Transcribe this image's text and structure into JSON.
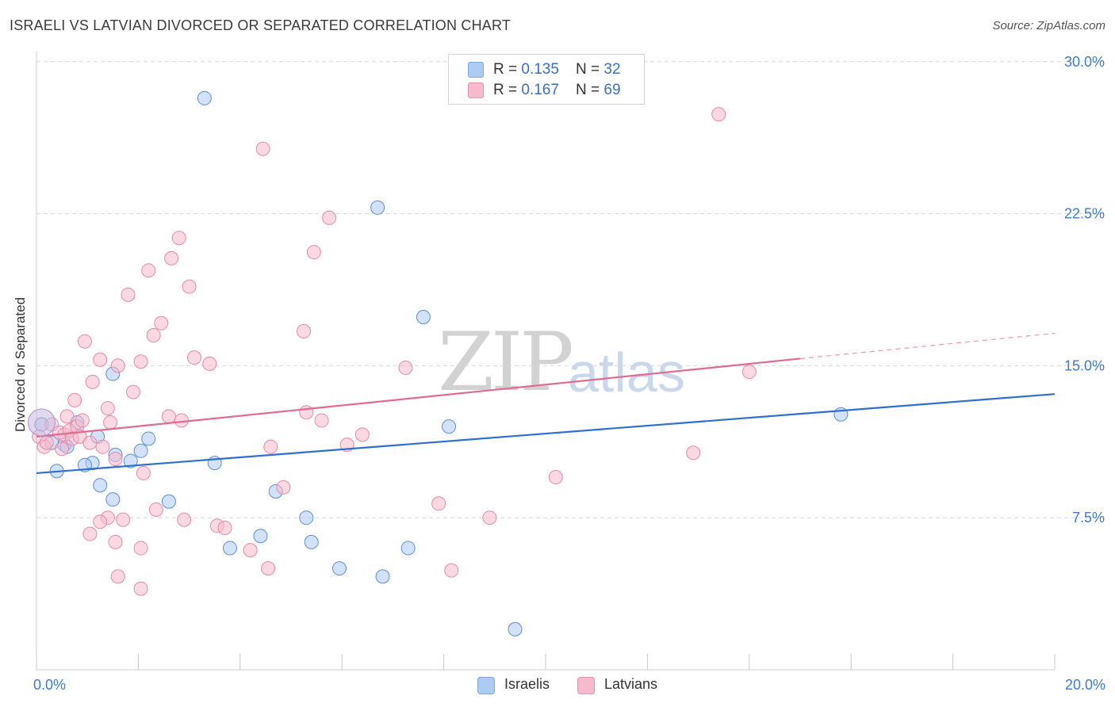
{
  "title": "ISRAELI VS LATVIAN DIVORCED OR SEPARATED CORRELATION CHART",
  "source": "Source: ZipAtlas.com",
  "watermark": {
    "zip": "ZIP",
    "atlas": "atlas"
  },
  "legend_top": {
    "rows": [
      {
        "r_label": "R = ",
        "r_value": "0.135",
        "n_label": "N = ",
        "n_value": "32",
        "color": "#aecbf2"
      },
      {
        "r_label": "R = ",
        "r_value": "0.167",
        "n_label": "N = ",
        "n_value": "69",
        "color": "#f7b9cc"
      }
    ]
  },
  "legend_bottom": [
    {
      "label": "Israelis",
      "color": "#aecbf2"
    },
    {
      "label": "Latvians",
      "color": "#f7b9cc"
    }
  ],
  "chart_data": {
    "type": "scatter",
    "title": "ISRAELI VS LATVIAN DIVORCED OR SEPARATED CORRELATION CHART",
    "xlabel": "",
    "ylabel": "Divorced or Separated",
    "xlim": [
      0,
      20
    ],
    "ylim": [
      0,
      30.5
    ],
    "x_ticks": [
      {
        "value": 0,
        "label": "0.0%"
      },
      {
        "value": 20,
        "label": "20.0%"
      }
    ],
    "y_ticks": [
      {
        "value": 7.5,
        "label": "7.5%"
      },
      {
        "value": 15,
        "label": "15.0%"
      },
      {
        "value": 22.5,
        "label": "22.5%"
      },
      {
        "value": 30,
        "label": "30.0%"
      }
    ],
    "grid": true,
    "legend_position": "top-center",
    "series": [
      {
        "name": "Israelis",
        "color": "#5b8fd9",
        "fill": "#aecbf2",
        "trend": {
          "x": [
            0,
            20
          ],
          "y": [
            9.7,
            13.6
          ],
          "color": "#2f6fd0"
        },
        "points": [
          [
            0.1,
            12.1
          ],
          [
            0.3,
            11.2
          ],
          [
            0.55,
            11.1
          ],
          [
            0.8,
            12.2
          ],
          [
            0.4,
            9.8
          ],
          [
            1.2,
            11.5
          ],
          [
            1.5,
            14.6
          ],
          [
            2.2,
            11.4
          ],
          [
            3.3,
            28.2
          ],
          [
            6.7,
            22.8
          ],
          [
            7.6,
            17.4
          ],
          [
            0.6,
            11.0
          ],
          [
            1.55,
            10.6
          ],
          [
            1.85,
            10.3
          ],
          [
            2.05,
            10.8
          ],
          [
            1.1,
            10.2
          ],
          [
            0.95,
            10.1
          ],
          [
            1.25,
            9.1
          ],
          [
            1.5,
            8.4
          ],
          [
            2.6,
            8.3
          ],
          [
            3.5,
            10.2
          ],
          [
            4.7,
            8.8
          ],
          [
            5.4,
            6.3
          ],
          [
            5.3,
            7.5
          ],
          [
            8.1,
            12.0
          ],
          [
            4.4,
            6.6
          ],
          [
            3.8,
            6.0
          ],
          [
            5.95,
            5.0
          ],
          [
            6.8,
            4.6
          ],
          [
            7.3,
            6.0
          ],
          [
            9.4,
            2.0
          ],
          [
            15.8,
            12.6
          ]
        ]
      },
      {
        "name": "Latvians",
        "color": "#e889a6",
        "fill": "#f7b9cc",
        "trend": {
          "x": [
            0,
            15
          ],
          "y": [
            11.5,
            15.35
          ],
          "dash_to": [
            20,
            16.6
          ],
          "color": "#e06a92"
        },
        "points": [
          [
            0.05,
            11.5
          ],
          [
            0.15,
            11.0
          ],
          [
            0.2,
            11.2
          ],
          [
            0.3,
            12.1
          ],
          [
            0.45,
            11.7
          ],
          [
            0.5,
            10.9
          ],
          [
            0.55,
            11.6
          ],
          [
            0.65,
            11.8
          ],
          [
            0.7,
            11.4
          ],
          [
            0.8,
            12.0
          ],
          [
            0.9,
            12.3
          ],
          [
            0.85,
            11.5
          ],
          [
            0.6,
            12.5
          ],
          [
            0.75,
            13.3
          ],
          [
            1.05,
            11.2
          ],
          [
            1.3,
            11.0
          ],
          [
            1.45,
            12.2
          ],
          [
            1.4,
            12.9
          ],
          [
            1.1,
            14.2
          ],
          [
            1.25,
            15.3
          ],
          [
            0.95,
            16.2
          ],
          [
            1.6,
            15.0
          ],
          [
            2.05,
            15.2
          ],
          [
            2.3,
            16.5
          ],
          [
            2.45,
            17.1
          ],
          [
            1.8,
            18.5
          ],
          [
            2.2,
            19.7
          ],
          [
            2.65,
            20.3
          ],
          [
            2.8,
            21.3
          ],
          [
            3.0,
            18.9
          ],
          [
            3.1,
            15.4
          ],
          [
            3.4,
            15.1
          ],
          [
            2.6,
            12.5
          ],
          [
            1.9,
            13.7
          ],
          [
            1.55,
            10.4
          ],
          [
            2.1,
            9.7
          ],
          [
            1.4,
            7.5
          ],
          [
            1.7,
            7.4
          ],
          [
            1.25,
            7.3
          ],
          [
            1.05,
            6.7
          ],
          [
            2.35,
            7.9
          ],
          [
            2.9,
            7.4
          ],
          [
            3.55,
            7.1
          ],
          [
            1.55,
            6.3
          ],
          [
            2.05,
            6.0
          ],
          [
            1.6,
            4.6
          ],
          [
            2.05,
            4.0
          ],
          [
            4.45,
            25.7
          ],
          [
            4.6,
            11.0
          ],
          [
            4.85,
            9.0
          ],
          [
            4.55,
            5.0
          ],
          [
            5.25,
            16.7
          ],
          [
            5.45,
            20.6
          ],
          [
            5.6,
            12.3
          ],
          [
            5.75,
            22.3
          ],
          [
            6.1,
            11.1
          ],
          [
            7.25,
            14.9
          ],
          [
            7.9,
            8.2
          ],
          [
            8.15,
            4.9
          ],
          [
            8.9,
            7.5
          ],
          [
            10.2,
            9.5
          ],
          [
            12.9,
            10.7
          ],
          [
            13.4,
            27.4
          ],
          [
            14.0,
            14.7
          ],
          [
            3.7,
            7.0
          ],
          [
            4.2,
            5.9
          ],
          [
            2.85,
            12.3
          ],
          [
            5.3,
            12.7
          ],
          [
            6.4,
            11.6
          ]
        ]
      }
    ]
  }
}
